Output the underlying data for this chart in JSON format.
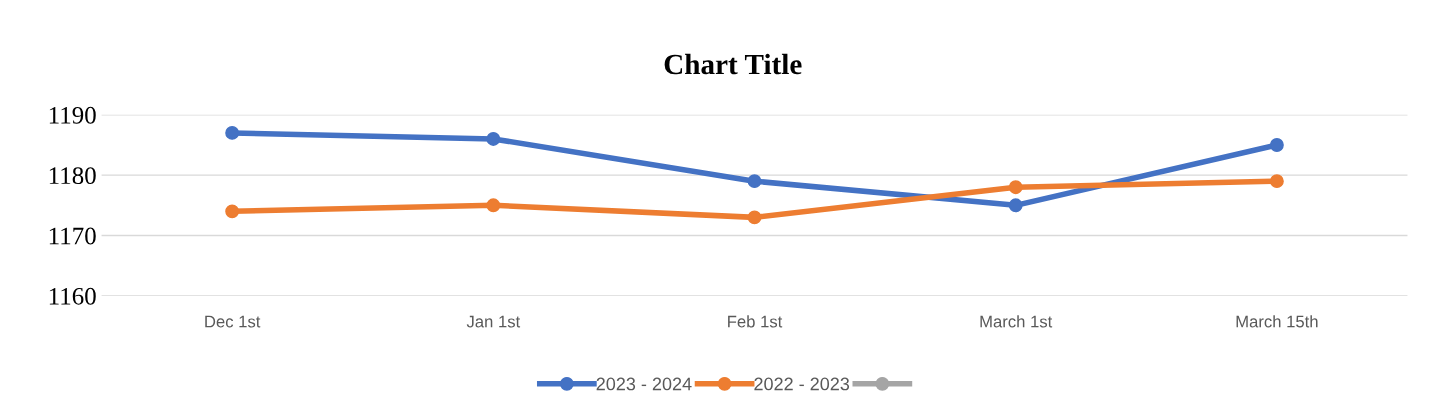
{
  "chart_data": {
    "type": "line",
    "title": "Chart Title",
    "categories": [
      "Dec 1st",
      "Jan 1st",
      "Feb 1st",
      "March 1st",
      "March 15th"
    ],
    "series": [
      {
        "name": "2023 - 2024",
        "color": "#4472c4",
        "values": [
          1187,
          1186,
          1179,
          1175,
          1185
        ]
      },
      {
        "name": "2022 - 2023",
        "color": "#ed7d31",
        "values": [
          1174,
          1175,
          1173,
          1178,
          1179
        ]
      },
      {
        "color": "#a5a5a5",
        "values": [
          null,
          null,
          null,
          null,
          null
        ]
      }
    ],
    "ylim": [
      1160,
      1190
    ],
    "yticks": [
      1160,
      1170,
      1180,
      1190
    ],
    "grid": "y",
    "legend": "bottom",
    "marker": "circle",
    "line_style": "solid"
  }
}
